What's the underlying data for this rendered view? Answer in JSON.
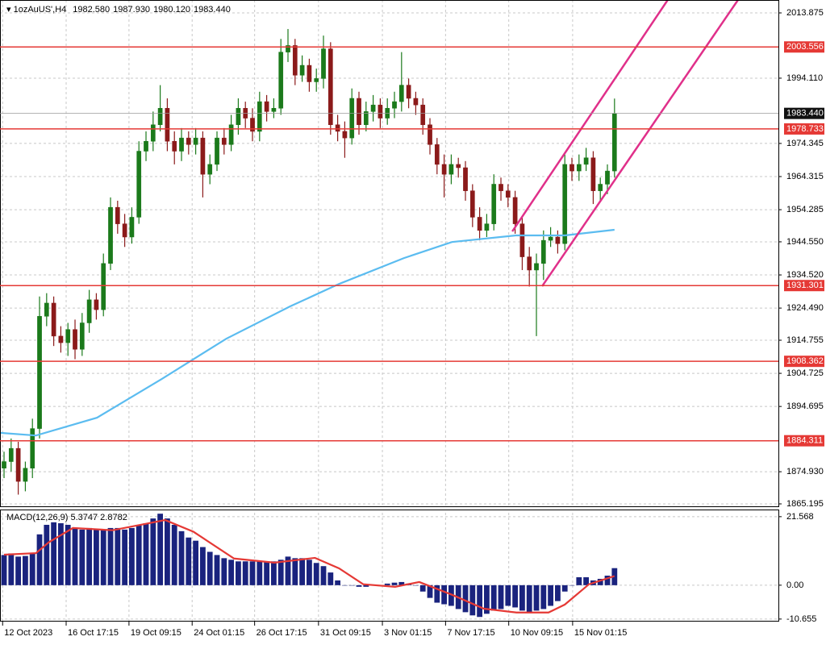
{
  "chart_data": [
    {
      "type": "candlestick",
      "title": "1ozAuUS',H4",
      "quote": [
        "1982.580",
        "1987.930",
        "1980.120",
        "1983.440"
      ],
      "xlim": [
        -0.57,
        109.09
      ],
      "ylim": [
        1864.46,
        2017.78
      ],
      "grid": true,
      "yticks": [
        2013.875,
        {
          "value": 1994.11,
          "label": "1994.110"
        },
        1974.345,
        1964.315,
        1954.285,
        {
          "value": 1944.55,
          "label": "1944.550"
        },
        {
          "value": 1934.52,
          "label": "1934.520"
        },
        {
          "value": 1924.49,
          "label": "1924.490"
        },
        1914.755,
        1904.725,
        1894.695,
        {
          "value": 1874.93,
          "label": "1874.930"
        },
        1865.195
      ],
      "levels": [
        2003.556,
        1978.733,
        1931.301,
        1908.362,
        1884.311
      ],
      "level_color": "#e53935",
      "current_price": {
        "value": 1983.44,
        "label": "1983.440"
      },
      "series": [
        {
          "type": "candles",
          "up_color": "#1b7a1b",
          "down_color": "#8b1a1a",
          "open": [
            1876,
            1878,
            1882,
            1872,
            1876,
            1888,
            1922,
            1926,
            1916,
            1914,
            1918,
            1912,
            1920,
            1927,
            1924,
            1938,
            1955,
            1950,
            1946,
            1952,
            1972,
            1975,
            1980,
            1985,
            1975,
            1972,
            1976,
            1974,
            1976,
            1965,
            1968,
            1976,
            1974,
            1980,
            1985,
            1982,
            1978,
            1987,
            1984,
            1985,
            2002,
            2004,
            1995,
            1998,
            1993,
            1994,
            2003,
            1980,
            1978,
            1976,
            1988,
            1980,
            1984,
            1986,
            1982,
            1985,
            1987,
            1992,
            1988,
            1986,
            1980,
            1974,
            1968,
            1965,
            1968,
            1967,
            1960,
            1952,
            1948,
            1950,
            1962,
            1960,
            1958,
            1950,
            1940,
            1936,
            1938,
            1945,
            1946,
            1944,
            1968,
            1966,
            1968,
            1970,
            1960,
            1962,
            1966
          ],
          "high": [
            1881,
            1885,
            1884,
            1878,
            1891,
            1928,
            1929,
            1928,
            1919,
            1920,
            1921,
            1923,
            1930,
            1929,
            1941,
            1958,
            1957,
            1953,
            1955,
            1975,
            1978,
            1984,
            1992,
            1988,
            1978,
            1979,
            1978,
            1979,
            1978,
            1971,
            1978,
            1979,
            1983,
            1988,
            1987,
            1985,
            1990,
            1989,
            1988,
            2006,
            2009,
            2006,
            2001,
            2000,
            1997,
            2007,
            2005,
            1983,
            1981,
            1991,
            1990,
            1987,
            1989,
            1988,
            1988,
            1990,
            2002,
            1994,
            1990,
            1988,
            1982,
            1976,
            1971,
            1971,
            1970,
            1969,
            1962,
            1955,
            1953,
            1965,
            1964,
            1962,
            1960,
            1952,
            1943,
            1941,
            1948,
            1949,
            1948,
            1971,
            1970,
            1971,
            1973,
            1972,
            1964,
            1968,
            1987.93
          ],
          "low": [
            1873,
            1875,
            1868,
            1869,
            1873,
            1885,
            1919,
            1913,
            1911,
            1910,
            1909,
            1910,
            1917,
            1921,
            1922,
            1936,
            1947,
            1943,
            1944,
            1950,
            1969,
            1972,
            1978,
            1972,
            1968,
            1969,
            1971,
            1971,
            1958,
            1962,
            1966,
            1971,
            1972,
            1977,
            1979,
            1975,
            1975,
            1981,
            1982,
            1983,
            1999,
            1992,
            1993,
            1990,
            1990,
            1991,
            1977,
            1975,
            1970,
            1974,
            1977,
            1978,
            1981,
            1979,
            1980,
            1982,
            1984,
            1985,
            1983,
            1977,
            1971,
            1965,
            1958,
            1962,
            1964,
            1957,
            1949,
            1945,
            1946,
            1948,
            1957,
            1955,
            1947,
            1936,
            1931,
            1916,
            1933,
            1943,
            1941,
            1942,
            1963,
            1963,
            1966,
            1956,
            1957,
            1959,
            1964
          ],
          "close": [
            1878,
            1882,
            1872,
            1876,
            1888,
            1922,
            1926,
            1916,
            1914,
            1918,
            1912,
            1920,
            1927,
            1924,
            1938,
            1955,
            1950,
            1946,
            1952,
            1972,
            1975,
            1980,
            1985,
            1975,
            1972,
            1976,
            1974,
            1976,
            1965,
            1968,
            1976,
            1974,
            1980,
            1985,
            1982,
            1978,
            1987,
            1984,
            1985,
            2002,
            2004,
            1995,
            1998,
            1993,
            1994,
            2003,
            1980,
            1978,
            1976,
            1988,
            1980,
            1984,
            1986,
            1982,
            1985,
            1987,
            1992,
            1988,
            1986,
            1980,
            1974,
            1968,
            1965,
            1968,
            1967,
            1960,
            1952,
            1948,
            1950,
            1962,
            1960,
            1958,
            1950,
            1940,
            1936,
            1938,
            1945,
            1946,
            1944,
            1968,
            1966,
            1968,
            1970,
            1960,
            1962,
            1966,
            1983.44
          ]
        },
        {
          "type": "line",
          "color": "#5bbcf0",
          "x": [
            -0.57,
            4.5,
            13.1,
            22.2,
            31.3,
            40.3,
            47.2,
            56.3,
            63.1,
            72.2,
            79,
            86
          ],
          "values": [
            1886.7,
            1885.9,
            1891.3,
            1903.0,
            1915.2,
            1925.0,
            1931.8,
            1939.6,
            1944.5,
            1946.5,
            1946.5,
            1948.2
          ]
        }
      ],
      "channel": {
        "color": "#e0308a",
        "lines": [
          {
            "x": [
              71.6,
              93.5
            ],
            "values": [
              1947.7,
              2017.8
            ]
          },
          {
            "x": [
              75.8,
              103.4
            ],
            "values": [
              1931.1,
              2017.8
            ]
          }
        ]
      },
      "xticks": [
        {
          "value": -0.2,
          "label": "12 Oct 2023"
        },
        {
          "value": 8.75,
          "label": "16 Oct 17:15"
        },
        {
          "value": 17.6,
          "label": "19 Oct 09:15"
        },
        {
          "value": 26.5,
          "label": "24 Oct 01:15"
        },
        {
          "value": 35.3,
          "label": "26 Oct 17:15"
        },
        {
          "value": 44.3,
          "label": "31 Oct 09:15"
        },
        {
          "value": 53.3,
          "label": "3 Nov 01:15"
        },
        {
          "value": 62.2,
          "label": "7 Nov 17:15"
        },
        {
          "value": 71.1,
          "label": "10 Nov 09:15"
        },
        {
          "value": 80.1,
          "label": "15 Nov 01:15"
        }
      ]
    },
    {
      "type": "macd",
      "title": "MACD(12,26,9) 5.3747 2.8782",
      "xlim": [
        -0.57,
        109.09
      ],
      "ylim": [
        -11.2,
        22.8
      ],
      "grid": true,
      "yticks": [
        21.568,
        {
          "value": 0,
          "label": "0.00"
        },
        -10.655
      ],
      "series": [
        {
          "type": "bar",
          "color": "#1a237e",
          "values": [
            9.5,
            10,
            9,
            9.2,
            10,
            16,
            19,
            19.8,
            19.5,
            19,
            18,
            17.5,
            18,
            17.5,
            17.5,
            18,
            18,
            17.5,
            18,
            19,
            19.5,
            21,
            22.5,
            21,
            19,
            17,
            15,
            14,
            12,
            10.5,
            9.5,
            8.5,
            8,
            7.5,
            7.5,
            7.5,
            7.5,
            7.5,
            7.5,
            8,
            9,
            8.5,
            8.5,
            8,
            7,
            6,
            4,
            1.5,
            0,
            0,
            -0.5,
            -0.5,
            0,
            -0.3,
            0.5,
            0.8,
            1,
            0.5,
            0,
            -2,
            -4,
            -5.5,
            -6,
            -6.5,
            -7.5,
            -8.5,
            -9.5,
            -10,
            -9,
            -8,
            -7.5,
            -6.5,
            -7,
            -8,
            -8.5,
            -8,
            -7.5,
            -6.5,
            -5,
            -2,
            0,
            2.5,
            2.5,
            1.5,
            2,
            3,
            5.37
          ]
        },
        {
          "type": "line",
          "color": "#e53935",
          "x": [
            0,
            4.5,
            6.3,
            9.7,
            15.3,
            19.9,
            22.7,
            26.7,
            32.4,
            38.1,
            43.8,
            47.2,
            50.6,
            55.1,
            58.5,
            63.1,
            67.6,
            72.2,
            76.7,
            79,
            82.4,
            86
          ],
          "values": [
            9.6,
            10.1,
            13.5,
            18,
            17.3,
            19.3,
            20.5,
            16.8,
            8.4,
            7.1,
            8.6,
            5.3,
            0.3,
            -0.5,
            1,
            -3,
            -7.4,
            -8.6,
            -8.6,
            -6.1,
            0.3,
            2.88
          ]
        }
      ]
    }
  ]
}
